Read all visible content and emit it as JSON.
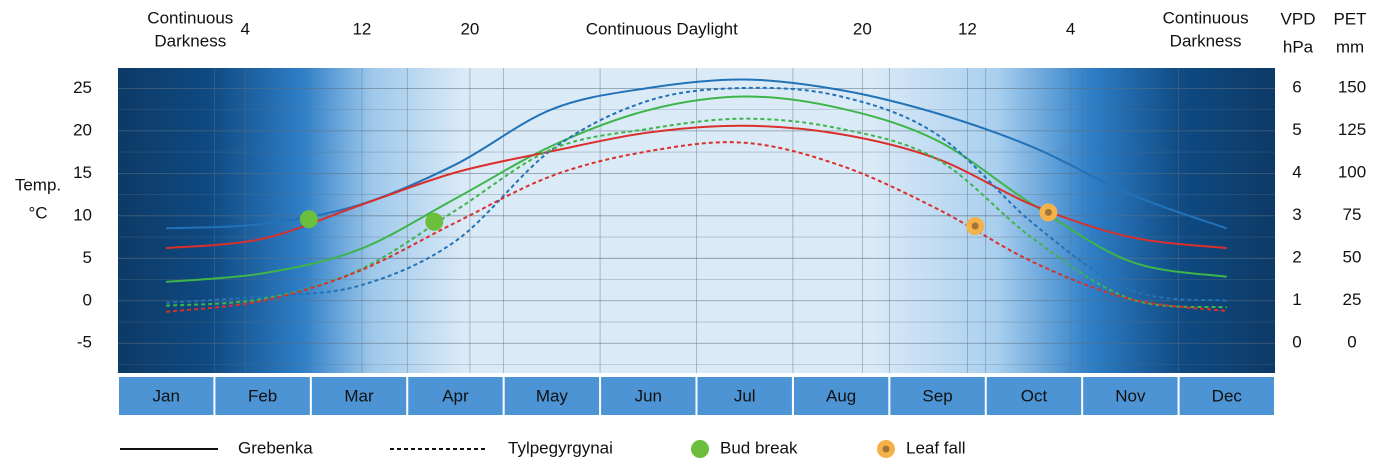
{
  "chart_data": {
    "type": "line",
    "categories": [
      "Jan",
      "Feb",
      "Mar",
      "Apr",
      "May",
      "Jun",
      "Jul",
      "Aug",
      "Sep",
      "Oct",
      "Nov",
      "Dec"
    ],
    "xlim": [
      0,
      12
    ],
    "daylength": [
      {
        "x": 0.75,
        "text": [
          "Continuous",
          "Darkness"
        ]
      },
      {
        "x": 1.32,
        "text": "4"
      },
      {
        "x": 2.53,
        "text": "12"
      },
      {
        "x": 3.65,
        "text": "20"
      },
      {
        "x": 5.64,
        "text": "Continuous  Daylight"
      },
      {
        "x": 7.72,
        "text": "20"
      },
      {
        "x": 8.81,
        "text": "12"
      },
      {
        "x": 9.88,
        "text": "4"
      },
      {
        "x": 11.28,
        "text": [
          "Continuous",
          "Darkness"
        ]
      }
    ],
    "axes": {
      "temp": {
        "label": [
          "Temp.",
          "°C"
        ],
        "color": "#d9302c",
        "lim": [
          -8.5,
          27.4
        ],
        "ticks": [
          -5,
          0,
          5,
          10,
          15,
          20,
          25
        ],
        "minor_ticks": [
          -7.5,
          -2.5,
          2.5,
          7.5,
          12.5,
          17.5,
          22.5
        ]
      },
      "vpd": {
        "label": [
          "VPD",
          "hPa"
        ],
        "color": "#2272b8",
        "lim": [
          -0.7,
          6.47
        ],
        "ticks": [
          0,
          1,
          2,
          3,
          4,
          5,
          6
        ]
      },
      "pet": {
        "label": [
          "PET",
          "mm"
        ],
        "color": "#3db54a",
        "lim": [
          -17.6,
          161.8
        ],
        "ticks": [
          0,
          25,
          50,
          75,
          100,
          125,
          150
        ]
      }
    },
    "grid": true,
    "sites": [
      {
        "name": "Grebenka",
        "dashed": false,
        "temp": [
          6.2,
          7.3,
          11.2,
          15.1,
          17.6,
          19.8,
          20.6,
          19.6,
          16.7,
          11.2,
          7.5,
          6.2
        ],
        "vpd": [
          2.7,
          2.8,
          3.25,
          4.2,
          5.5,
          6.0,
          6.2,
          5.95,
          5.4,
          4.6,
          3.5,
          2.7
        ],
        "pet": [
          36,
          41,
          55,
          85,
          116,
          137,
          145,
          138,
          119,
          81,
          48,
          39
        ]
      },
      {
        "name": "Tylpegyrgynai",
        "dashed": true,
        "temp": [
          -1.3,
          0,
          3.5,
          9.2,
          14.7,
          17.6,
          18.6,
          15.9,
          10.8,
          4.5,
          0.2,
          -1.2
        ],
        "vpd": [
          0.95,
          1.1,
          1.35,
          2.4,
          4.55,
          5.7,
          6.0,
          5.8,
          4.9,
          2.8,
          1.25,
          1.0
        ],
        "pet": [
          22,
          26,
          43,
          78,
          114,
          126,
          132,
          126,
          108,
          61,
          26,
          21
        ]
      }
    ],
    "events": [
      {
        "name": "Bud break",
        "color": "#6cbf3c",
        "points": [
          {
            "x": 1.98,
            "y": 9.6
          },
          {
            "x": 3.28,
            "y": 9.3
          }
        ]
      },
      {
        "name": "Leaf fall",
        "color": "#f5b24a",
        "points": [
          {
            "x": 8.89,
            "y": 8.8
          },
          {
            "x": 9.65,
            "y": 10.4
          }
        ]
      }
    ]
  }
}
